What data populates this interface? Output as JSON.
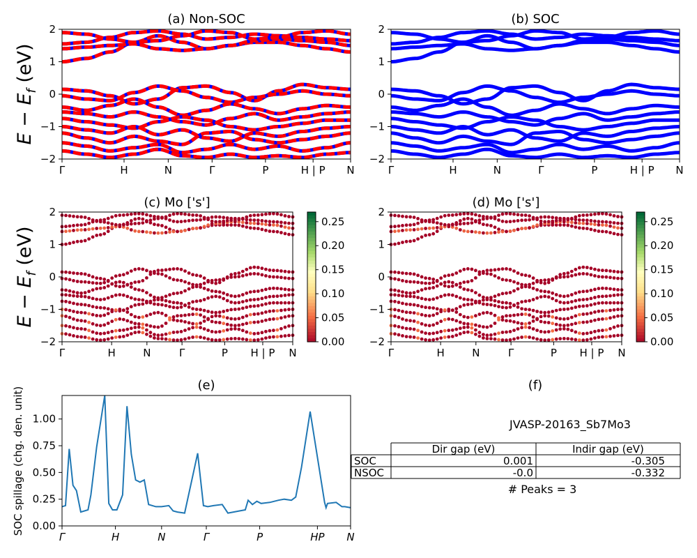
{
  "figure": {
    "big_ylabel_text": "E − E",
    "big_ylabel_sub": "f",
    "big_ylabel_unit": " (eV)"
  },
  "panels": {
    "a": {
      "title": "(a) Non-SOC"
    },
    "b": {
      "title": "(b) SOC"
    },
    "c": {
      "title": "(c)  Mo ['s']"
    },
    "d": {
      "title": "(d) Mo ['s']"
    },
    "e": {
      "title": "(e)",
      "ylabel": "SOC spillage (chg. den. unit)"
    },
    "f": {
      "title": "(f)",
      "material": "JVASP-20163_Sb7Mo3",
      "peaks_text": "# Peaks = 3"
    }
  },
  "kpath": [
    "Γ",
    "H",
    "N",
    "Γ",
    "P",
    "H | P",
    "N"
  ],
  "kpath_spillage": [
    "Γ",
    "H",
    "N",
    "Γ",
    "P",
    "HP",
    "N"
  ],
  "energy_axis": {
    "ticks": [
      "2",
      "1",
      "0",
      "−1",
      "−2"
    ],
    "range": [
      -2,
      2
    ]
  },
  "colorbar": {
    "ticks": [
      "0.25",
      "0.20",
      "0.15",
      "0.10",
      "0.05",
      "0.00"
    ],
    "range": [
      0,
      0.27
    ],
    "colormap": "RdYlGn"
  },
  "colors": {
    "nonsoc_red": "#ff0000",
    "nonsoc_blue": "#0000ff",
    "soc_blue": "#0000ff",
    "spillage_line": "#1f77b4",
    "dot_base": "#a50026"
  },
  "gap_table": {
    "headers": [
      "",
      "Dir gap (eV)",
      "Indir gap (eV)"
    ],
    "rows": [
      [
        "SOC",
        "0.001",
        "-0.305"
      ],
      [
        "NSOC",
        "-0.0",
        "-0.332"
      ]
    ]
  },
  "chart_data": [
    {
      "type": "line",
      "panel": "e",
      "title": "(e)",
      "ylabel": "SOC spillage (chg. den. unit)",
      "xticks": [
        "Γ",
        "H",
        "N",
        "Γ",
        "P",
        "HP",
        "N"
      ],
      "ylim": [
        0,
        1.22
      ],
      "yticks": [
        "0.00",
        "0.25",
        "0.50",
        "0.75",
        "1.00"
      ],
      "x": [
        0,
        0.012,
        0.025,
        0.038,
        0.05,
        0.065,
        0.09,
        0.1,
        0.12,
        0.148,
        0.162,
        0.175,
        0.19,
        0.21,
        0.225,
        0.24,
        0.255,
        0.27,
        0.285,
        0.3,
        0.325,
        0.345,
        0.37,
        0.385,
        0.4,
        0.425,
        0.47,
        0.49,
        0.505,
        0.525,
        0.555,
        0.575,
        0.615,
        0.635,
        0.645,
        0.66,
        0.675,
        0.69,
        0.72,
        0.75,
        0.77,
        0.795,
        0.81,
        0.83,
        0.86,
        0.91,
        0.915,
        0.92,
        0.95,
        0.97,
        0.98,
        1
      ],
      "y": [
        0.18,
        0.19,
        0.72,
        0.38,
        0.33,
        0.13,
        0.15,
        0.29,
        0.74,
        1.22,
        0.21,
        0.15,
        0.15,
        0.29,
        1.12,
        0.67,
        0.43,
        0.41,
        0.43,
        0.2,
        0.18,
        0.18,
        0.19,
        0.14,
        0.13,
        0.12,
        0.68,
        0.19,
        0.18,
        0.19,
        0.2,
        0.12,
        0.14,
        0.15,
        0.24,
        0.2,
        0.23,
        0.21,
        0.22,
        0.24,
        0.25,
        0.24,
        0.27,
        0.55,
        1.07,
        0.22,
        0.17,
        0.21,
        0.22,
        0.18,
        0.18,
        0.17
      ]
    },
    {
      "type": "line",
      "panel": "a",
      "title": "(a) Non-SOC",
      "ylim": [
        -2,
        2
      ],
      "xticks": [
        "Γ",
        "H",
        "N",
        "Γ",
        "P",
        "H | P",
        "N"
      ],
      "note_style": "red/blue dashed overlapping bands",
      "bands": [
        [
          1.0,
          1.1,
          1.3,
          1.6,
          1.8,
          1.6,
          1.4,
          1.5,
          1.6,
          1.6,
          1.5,
          1.4,
          1.3
        ],
        [
          1.4,
          1.45,
          1.5,
          1.55,
          1.4,
          1.35,
          1.4,
          1.5,
          1.65,
          1.7,
          1.65,
          1.6,
          1.5
        ],
        [
          1.55,
          1.6,
          1.75,
          1.9,
          1.95,
          1.85,
          1.7,
          1.75,
          1.85,
          1.8,
          1.75,
          1.7,
          1.65
        ],
        [
          1.9,
          1.85,
          1.7,
          1.6,
          1.65,
          1.8,
          1.95,
          1.9,
          1.7,
          1.75,
          1.9,
          1.95,
          1.85
        ],
        [
          0.15,
          0.1,
          -0.05,
          -0.3,
          -0.15,
          0.2,
          0.25,
          0.05,
          -0.2,
          0.1,
          0.3,
          0.2,
          0.15
        ],
        [
          -0.05,
          -0.15,
          -0.2,
          0.05,
          0.25,
          0.1,
          -0.1,
          -0.25,
          -0.1,
          0.0,
          0.1,
          0.0,
          -0.05
        ],
        [
          -0.4,
          -0.5,
          -0.35,
          -0.15,
          -0.4,
          -0.65,
          -0.5,
          -0.3,
          -0.45,
          -0.6,
          -0.45,
          -0.35,
          -0.4
        ],
        [
          -0.55,
          -0.6,
          -0.7,
          -0.55,
          -0.7,
          -0.85,
          -0.95,
          -0.75,
          -0.6,
          -0.8,
          -0.7,
          -0.6,
          -0.55
        ],
        [
          -0.75,
          -0.85,
          -0.95,
          -1.05,
          -0.85,
          -0.7,
          -0.8,
          -1.0,
          -1.1,
          -1.0,
          -0.9,
          -0.8,
          -0.8
        ],
        [
          -1.0,
          -1.1,
          -1.2,
          -1.0,
          -1.25,
          -1.1,
          -1.35,
          -1.45,
          -1.2,
          -1.3,
          -1.15,
          -1.05,
          -1.0
        ],
        [
          -1.2,
          -1.35,
          -1.5,
          -1.3,
          -1.45,
          -1.55,
          -1.2,
          -1.15,
          -1.4,
          -1.5,
          -1.4,
          -1.3,
          -1.2
        ],
        [
          -1.5,
          -1.6,
          -1.75,
          -1.65,
          -1.55,
          -1.8,
          -1.7,
          -1.55,
          -1.7,
          -1.6,
          -1.75,
          -1.65,
          -1.5
        ],
        [
          -1.75,
          -1.85,
          -1.95,
          -1.85,
          -1.7,
          -1.9,
          -1.95,
          -1.85,
          -1.95,
          -1.9,
          -1.95,
          -1.85,
          -1.8
        ]
      ]
    }
  ]
}
